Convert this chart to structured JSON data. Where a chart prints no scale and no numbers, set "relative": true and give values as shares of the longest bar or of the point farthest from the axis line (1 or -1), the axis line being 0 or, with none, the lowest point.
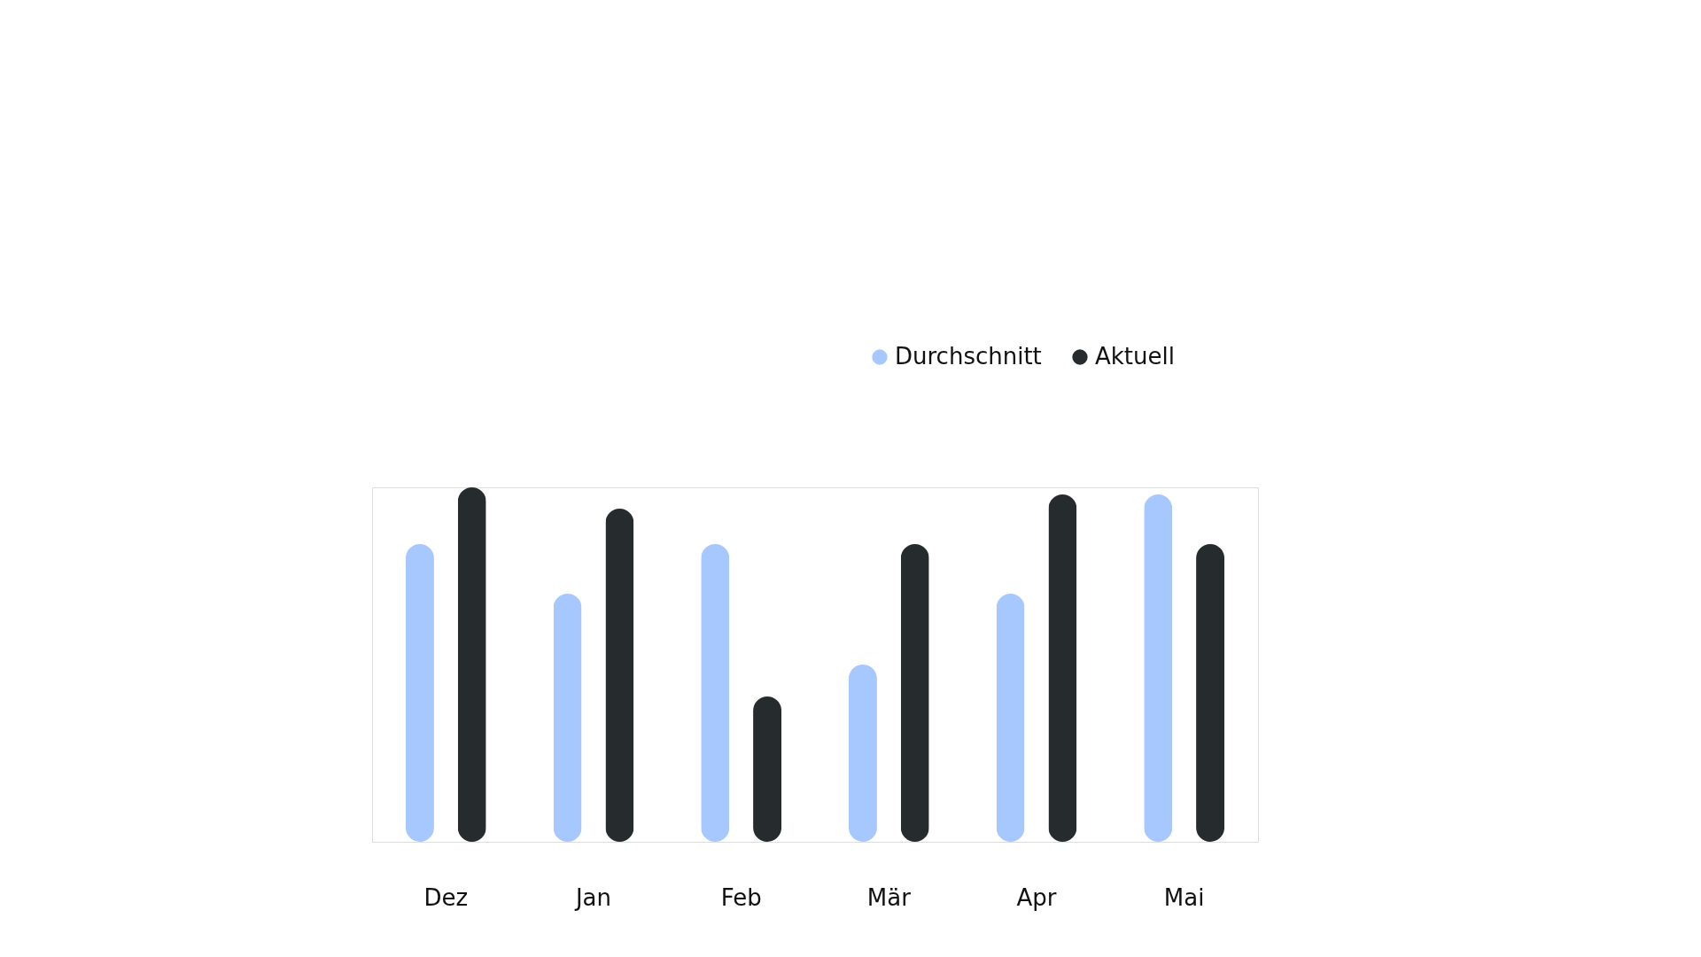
{
  "chart_data": {
    "type": "bar",
    "relative": true,
    "categories": [
      "Dez",
      "Jan",
      "Feb",
      "Mär",
      "Apr",
      "Mai"
    ],
    "series": [
      {
        "name": "Durchschnitt",
        "color": "#a6c8ff",
        "values": [
          0.84,
          0.7,
          0.84,
          0.5,
          0.7,
          0.98
        ]
      },
      {
        "name": "Aktuell",
        "color": "#262b2e",
        "values": [
          1.0,
          0.94,
          0.41,
          0.84,
          0.98,
          0.84
        ]
      }
    ],
    "legend": "top right",
    "grid": false
  }
}
